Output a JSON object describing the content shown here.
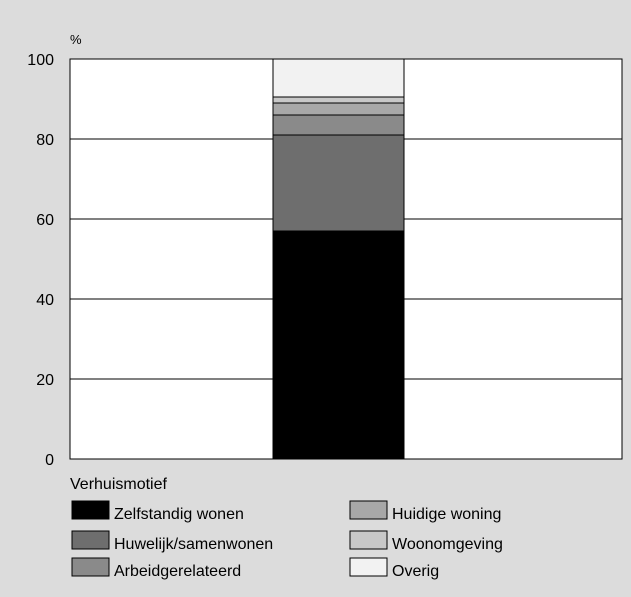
{
  "chart_data": {
    "type": "bar",
    "stacked": true,
    "ylabel": "%",
    "ylim": [
      0,
      100
    ],
    "yticks": [
      0,
      20,
      40,
      60,
      80,
      100
    ],
    "grid": true,
    "legend_title": "Verhuismotief",
    "legend_position": "bottom",
    "series": [
      {
        "name": "Zelfstandig wonen",
        "value": 57,
        "color": "#000000"
      },
      {
        "name": "Huwelijk/samenwonen",
        "value": 24,
        "color": "#6e6e6e"
      },
      {
        "name": "Arbeidgerelateerd",
        "value": 5,
        "color": "#8a8a8a"
      },
      {
        "name": "Huidige woning",
        "value": 3,
        "color": "#a8a8a8"
      },
      {
        "name": "Woonomgeving",
        "value": 1.5,
        "color": "#c8c8c8"
      },
      {
        "name": "Overig",
        "value": 9.5,
        "color": "#f2f2f2"
      }
    ]
  }
}
